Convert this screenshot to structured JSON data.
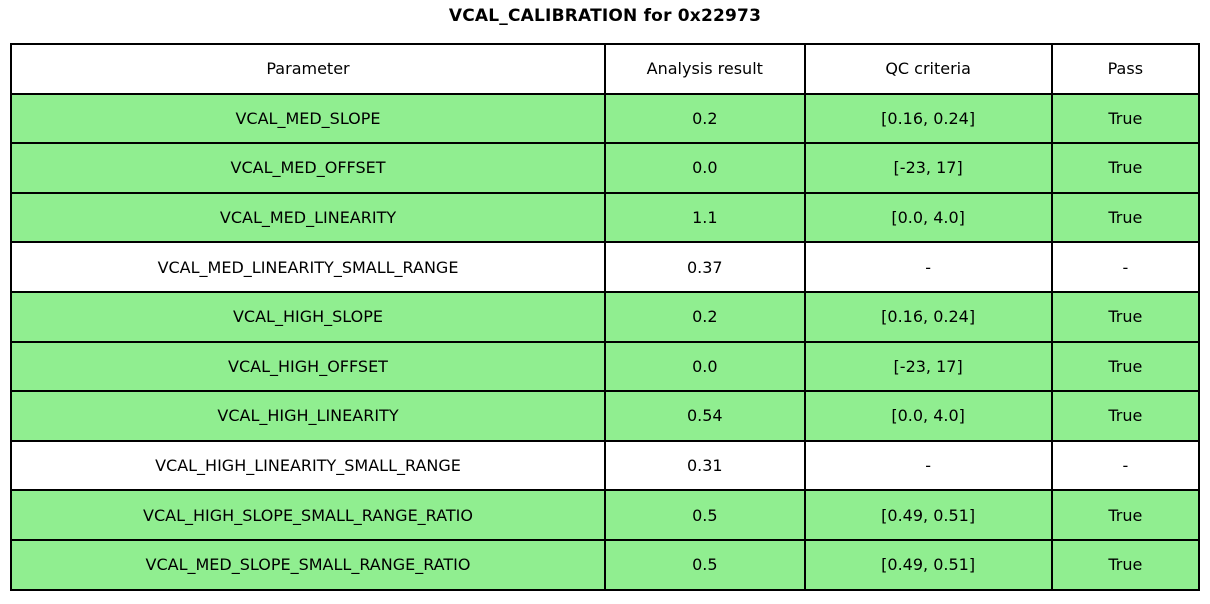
{
  "figure": {
    "title": "VCAL_CALIBRATION for 0x22973"
  },
  "colors": {
    "pass_row_bg": "#90EE90",
    "default_row_bg": "#FFFFFF",
    "border": "#000000",
    "text": "#000000"
  },
  "table": {
    "columns": [
      "Parameter",
      "Analysis result",
      "QC criteria",
      "Pass"
    ],
    "rows": [
      {
        "parameter": "VCAL_MED_SLOPE",
        "result": "0.2",
        "qc_criteria": "[0.16, 0.24]",
        "pass": "True",
        "highlighted": true
      },
      {
        "parameter": "VCAL_MED_OFFSET",
        "result": "0.0",
        "qc_criteria": "[-23, 17]",
        "pass": "True",
        "highlighted": true
      },
      {
        "parameter": "VCAL_MED_LINEARITY",
        "result": "1.1",
        "qc_criteria": "[0.0, 4.0]",
        "pass": "True",
        "highlighted": true
      },
      {
        "parameter": "VCAL_MED_LINEARITY_SMALL_RANGE",
        "result": "0.37",
        "qc_criteria": "-",
        "pass": "-",
        "highlighted": false
      },
      {
        "parameter": "VCAL_HIGH_SLOPE",
        "result": "0.2",
        "qc_criteria": "[0.16, 0.24]",
        "pass": "True",
        "highlighted": true
      },
      {
        "parameter": "VCAL_HIGH_OFFSET",
        "result": "0.0",
        "qc_criteria": "[-23, 17]",
        "pass": "True",
        "highlighted": true
      },
      {
        "parameter": "VCAL_HIGH_LINEARITY",
        "result": "0.54",
        "qc_criteria": "[0.0, 4.0]",
        "pass": "True",
        "highlighted": true
      },
      {
        "parameter": "VCAL_HIGH_LINEARITY_SMALL_RANGE",
        "result": "0.31",
        "qc_criteria": "-",
        "pass": "-",
        "highlighted": false
      },
      {
        "parameter": "VCAL_HIGH_SLOPE_SMALL_RANGE_RATIO",
        "result": "0.5",
        "qc_criteria": "[0.49, 0.51]",
        "pass": "True",
        "highlighted": true
      },
      {
        "parameter": "VCAL_MED_SLOPE_SMALL_RANGE_RATIO",
        "result": "0.5",
        "qc_criteria": "[0.49, 0.51]",
        "pass": "True",
        "highlighted": true
      }
    ]
  },
  "chart_data": {
    "type": "table",
    "title": "VCAL_CALIBRATION for 0x22973",
    "columns": [
      "Parameter",
      "Analysis result",
      "QC criteria",
      "Pass"
    ],
    "rows": [
      [
        "VCAL_MED_SLOPE",
        "0.2",
        "[0.16, 0.24]",
        "True"
      ],
      [
        "VCAL_MED_OFFSET",
        "0.0",
        "[-23, 17]",
        "True"
      ],
      [
        "VCAL_MED_LINEARITY",
        "1.1",
        "[0.0, 4.0]",
        "True"
      ],
      [
        "VCAL_MED_LINEARITY_SMALL_RANGE",
        "0.37",
        "-",
        "-"
      ],
      [
        "VCAL_HIGH_SLOPE",
        "0.2",
        "[0.16, 0.24]",
        "True"
      ],
      [
        "VCAL_HIGH_OFFSET",
        "0.0",
        "[-23, 17]",
        "True"
      ],
      [
        "VCAL_HIGH_LINEARITY",
        "0.54",
        "[0.0, 4.0]",
        "True"
      ],
      [
        "VCAL_HIGH_LINEARITY_SMALL_RANGE",
        "0.31",
        "-",
        "-"
      ],
      [
        "VCAL_HIGH_SLOPE_SMALL_RANGE_RATIO",
        "0.5",
        "[0.49, 0.51]",
        "True"
      ],
      [
        "VCAL_MED_SLOPE_SMALL_RANGE_RATIO",
        "0.5",
        "[0.49, 0.51]",
        "True"
      ]
    ],
    "row_pass_highlight": [
      true,
      true,
      true,
      false,
      true,
      true,
      true,
      false,
      true,
      true
    ],
    "layout": {
      "title_position": "top-center",
      "cell_text_align": "center",
      "grid": "all-borders"
    }
  }
}
